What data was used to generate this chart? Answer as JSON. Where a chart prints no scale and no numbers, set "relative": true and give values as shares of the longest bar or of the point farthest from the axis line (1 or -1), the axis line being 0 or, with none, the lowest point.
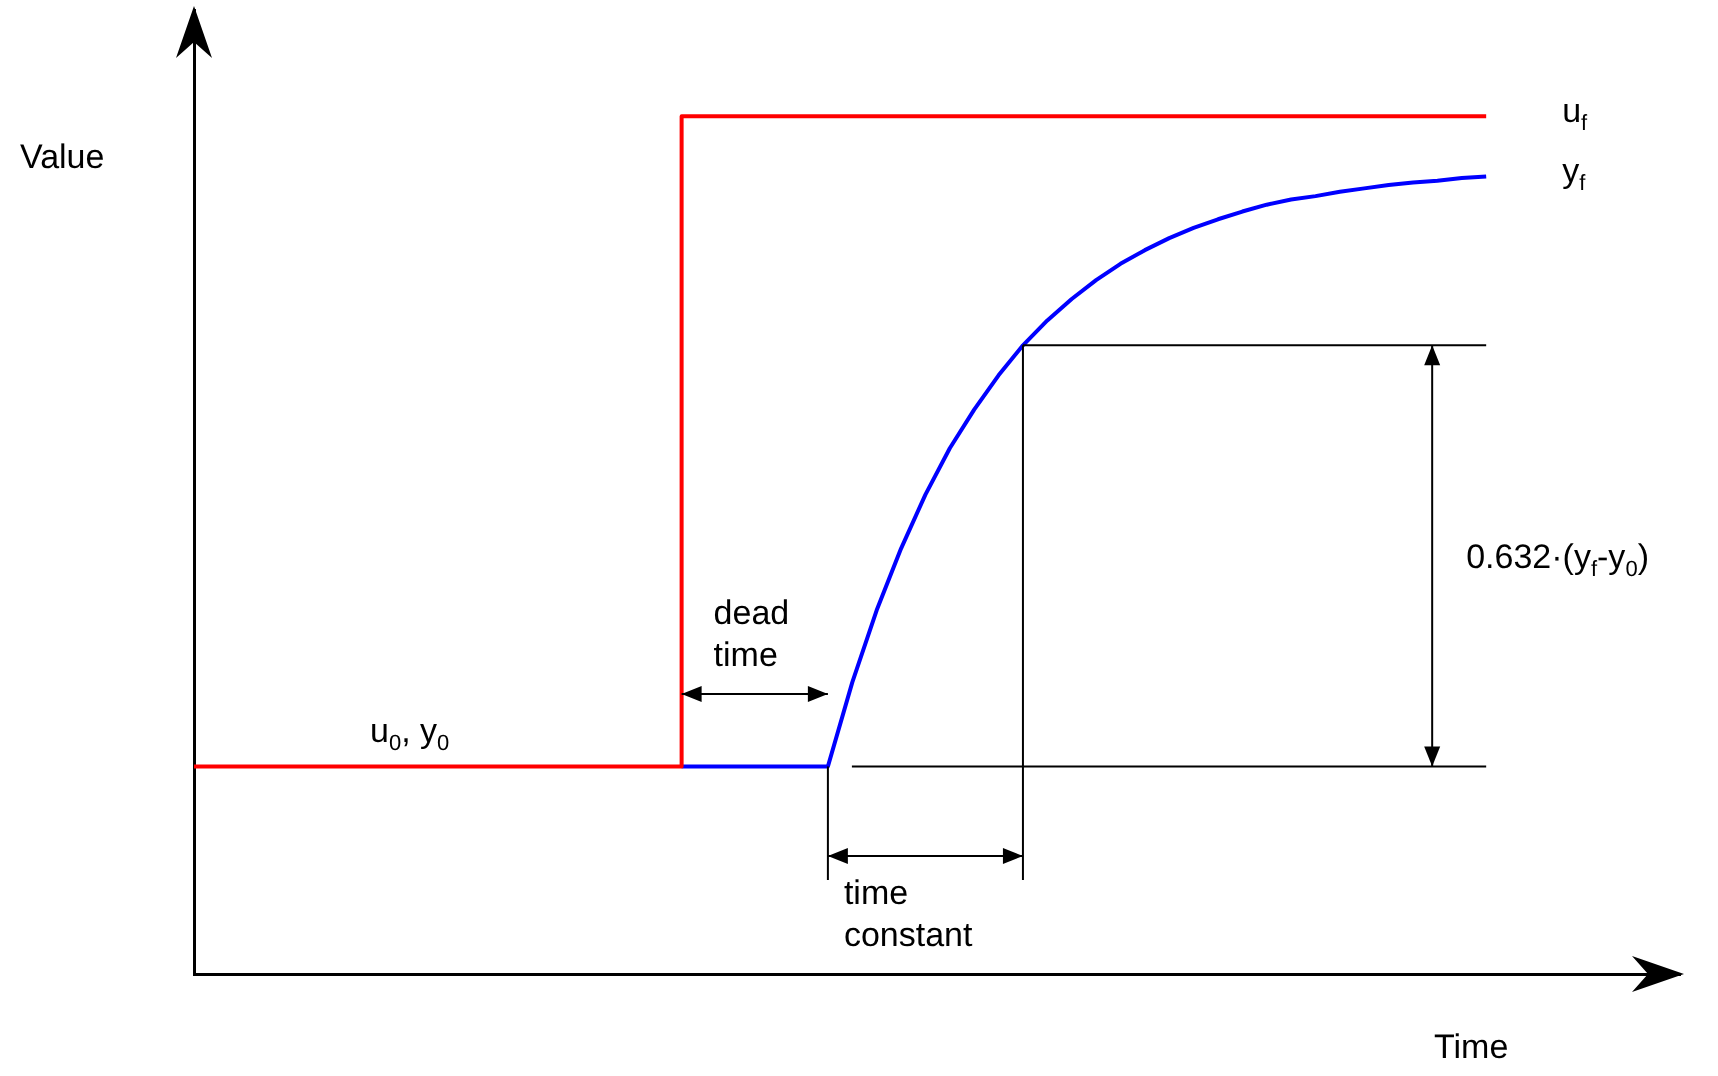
{
  "chart_data": {
    "type": "line",
    "relative": true,
    "xlabel": "Time",
    "ylabel": "Value",
    "marker": "none",
    "legend": false,
    "categories": [
      null,
      null,
      null,
      null,
      null,
      null,
      null,
      null,
      null,
      null,
      null,
      null,
      null,
      null,
      null,
      null,
      null,
      null,
      null,
      null,
      null,
      null,
      null,
      null,
      null,
      null,
      null,
      null,
      null,
      null,
      null,
      null,
      null,
      null,
      null,
      null,
      null,
      null,
      null,
      null,
      null,
      null,
      null,
      null,
      null,
      null,
      null,
      null,
      null,
      null,
      null,
      null,
      null,
      null
    ],
    "series": [
      {
        "name": "u$_{f}$",
        "type": "step",
        "color": "#ff0000",
        "values": [
          0.242,
          0.242,
          0.242,
          0.242,
          0.242,
          0.242,
          0.242,
          0.242,
          0.242,
          0.242,
          0.242,
          0.242,
          0.242,
          0.242,
          0.242,
          0.242,
          0.242,
          0.242,
          0.242,
          0.242,
          1,
          1,
          1,
          1,
          1,
          1,
          1,
          1,
          1,
          1,
          1,
          1,
          1,
          1,
          1,
          1,
          1,
          1,
          1,
          1,
          1,
          1,
          1,
          1,
          1,
          1,
          1,
          1,
          1,
          1,
          1,
          1,
          1,
          1
        ]
      },
      {
        "name": "y$_{f}$",
        "type": "line",
        "color": "#0000ff",
        "values": [
          null,
          null,
          null,
          null,
          null,
          null,
          null,
          null,
          null,
          null,
          null,
          null,
          null,
          null,
          null,
          null,
          null,
          null,
          null,
          null,
          0.242,
          0.242,
          0.242,
          0.242,
          0.242,
          0.242,
          0.242,
          0.34,
          0.424,
          0.496,
          0.559,
          0.613,
          0.658,
          0.698,
          0.733,
          0.762,
          0.787,
          0.809,
          0.828,
          0.844,
          0.858,
          0.87,
          0.88,
          0.889,
          0.897,
          0.903,
          0.907,
          0.912,
          0.916,
          0.92,
          0.923,
          0.925,
          0.928,
          0.93
        ]
      }
    ],
    "ref_lines": [
      {
        "axis": "y",
        "value": 0.733,
        "color": "#000000"
      },
      {
        "axis": "y",
        "value": 0.242,
        "color": "#000000"
      }
    ],
    "annotations": [
      {
        "text": "u$_{0}$, y$_{0}$",
        "y": 0.242
      },
      "dead time",
      "time constant",
      "0.632·(y$_{f}$-y$_{0}$)"
    ]
  }
}
